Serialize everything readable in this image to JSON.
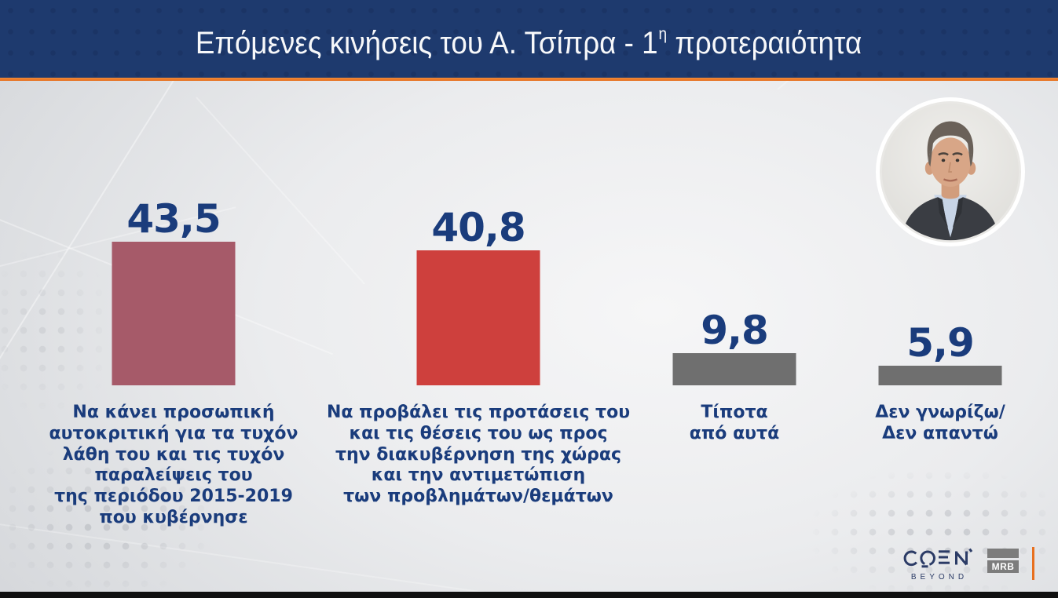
{
  "header": {
    "title_main": "Επόμενες κινήσεις του Α. Τσίπρα - 1",
    "title_sup": "η",
    "title_rest": " προτεραιότητα",
    "bg_color": "#1e3a6e",
    "accent_color": "#e8701f",
    "text_color": "#f7f8fa"
  },
  "chart_data": {
    "type": "bar",
    "title": "Επόμενες κινήσεις του Α. Τσίπρα - 1η προτεραιότητα",
    "categories": [
      [
        "Να κάνει προσωπική",
        "αυτοκριτική για τα τυχόν",
        "λάθη του και τις τυχόν",
        "παραλείψεις του",
        "της περιόδου 2015-2019",
        "που κυβέρνησε"
      ],
      [
        "Να προβάλει τις προτάσεις του",
        "και τις θέσεις του ως προς",
        "την διακυβέρνηση της χώρας",
        "και την αντιμετώπιση",
        "των προβλημάτων/θεμάτων"
      ],
      [
        "Τίποτα",
        "από αυτά"
      ],
      [
        "Δεν γνωρίζω/",
        "Δεν απαντώ"
      ]
    ],
    "values": [
      43.5,
      40.8,
      9.8,
      5.9
    ],
    "value_labels": [
      "43,5",
      "40,8",
      "9,8",
      "5,9"
    ],
    "colors": [
      "#a65a69",
      "#ce403d",
      "#6f6f6f",
      "#6f6f6f"
    ],
    "value_text_color": "#1a3c7c",
    "xlabel": "",
    "ylabel": "",
    "ylim": [
      0,
      45
    ],
    "grid": false,
    "legend": false
  },
  "footer": {
    "channel": "OPEN",
    "channel_sub": "BEYOND",
    "agency": "MRB"
  }
}
